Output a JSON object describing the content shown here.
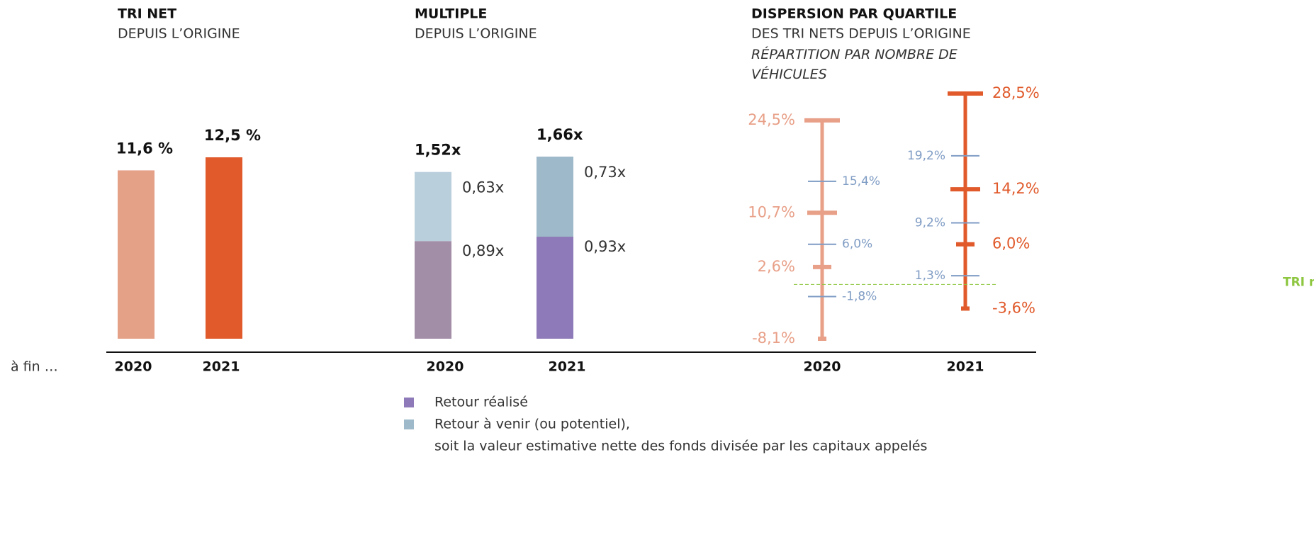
{
  "chart_data": [
    {
      "type": "bar",
      "title": "TRI NET",
      "subtitle": "DEPUIS L’ORIGINE",
      "x_label": "à fin …",
      "categories": [
        "2020",
        "2021"
      ],
      "values": [
        11.6,
        12.5
      ],
      "value_labels": [
        "11,6 %",
        "12,5 %"
      ],
      "colors": [
        "#e5a088",
        "#e05a2b"
      ]
    },
    {
      "type": "stacked_bar",
      "title": "MULTIPLE",
      "subtitle": "DEPUIS L’ORIGINE",
      "categories": [
        "2020",
        "2021"
      ],
      "totals": [
        1.52,
        1.66
      ],
      "total_labels": [
        "1,52x",
        "1,66x"
      ],
      "series": [
        {
          "name": "Retour réalisé",
          "color": "#8e7ab8",
          "colors": [
            "#a38ea8",
            "#8e7ab8"
          ],
          "values": [
            0.89,
            0.93
          ],
          "value_labels": [
            "0,89x",
            "0,93x"
          ]
        },
        {
          "name": "Retour à venir (ou potentiel),",
          "color": "#9eb9c9",
          "colors": [
            "#b9cfdb",
            "#9eb9c9"
          ],
          "values": [
            0.63,
            0.73
          ],
          "value_labels": [
            "0,63x",
            "0,73x"
          ]
        }
      ],
      "legend_note": "soit la valeur estimative nette des fonds divisée par les capitaux appelés"
    },
    {
      "type": "quartile",
      "title": "DISPERSION PAR QUARTILE",
      "subtitle": "DES TRI NETS DEPUIS L’ORIGINE",
      "subtitle_italic": "RÉPARTITION PAR NOMBRE DE VÉHICULES",
      "groups": [
        {
          "category": "2020",
          "series": [
            {
              "color": "#e8a088",
              "values": [
                24.5,
                10.7,
                2.6,
                -8.1
              ],
              "value_labels": [
                "24,5%",
                "10,7%",
                "2,6%",
                "-8,1%"
              ]
            },
            {
              "color": "#7f9cc4",
              "values": [
                15.4,
                6.0,
                -1.8
              ],
              "value_labels": [
                "15,4%",
                "6,0%",
                "-1,8%"
              ]
            }
          ]
        },
        {
          "category": "2021",
          "series": [
            {
              "color": "#e05a2b",
              "values": [
                28.5,
                14.2,
                6.0,
                -3.6
              ],
              "value_labels": [
                "28,5%",
                "14,2%",
                "6,0%",
                "-3,6%"
              ]
            },
            {
              "color": "#7f9cc4",
              "values": [
                19.2,
                9.2,
                1.3
              ],
              "value_labels": [
                "19,2%",
                "9,2%",
                "1,3%"
              ]
            }
          ]
        }
      ],
      "reference_line": {
        "value": 0,
        "label": "TRI nul",
        "color": "#8dc63f"
      }
    }
  ]
}
